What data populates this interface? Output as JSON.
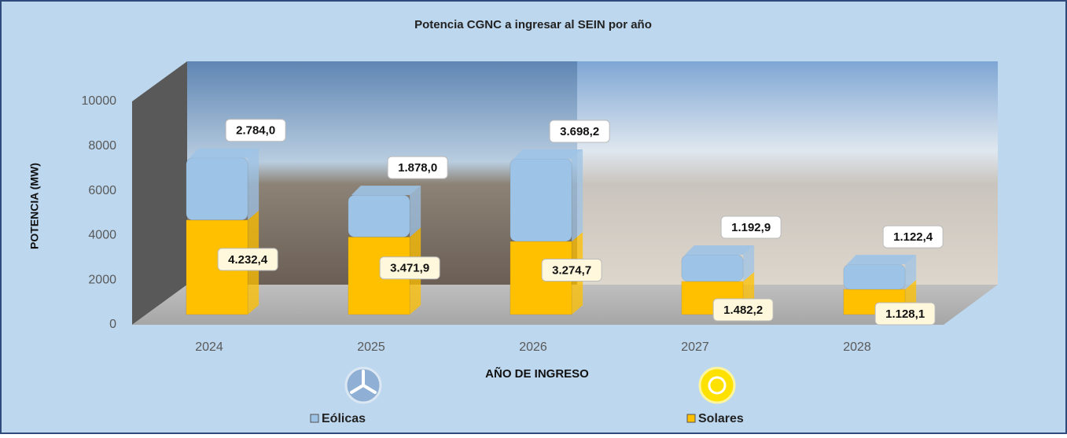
{
  "chart_data": {
    "type": "stacked-bar-3d",
    "title": "Potencia CGNC a ingresar al SEIN por año",
    "y_label": "POTENCIA (MW)",
    "x_label": "AÑO DE INGRESO",
    "categories": [
      "2024",
      "2025",
      "2026",
      "2027",
      "2028"
    ],
    "series": [
      {
        "name": "Eólicas",
        "color": "#9dc3e6",
        "values": [
          2784.0,
          1878.0,
          3698.2,
          1192.9,
          1122.4
        ],
        "value_labels": [
          "2.784,0",
          "1.878,0",
          "3.698,2",
          "1.192,9",
          "1.122,4"
        ]
      },
      {
        "name": "Solares",
        "color": "#ffc000",
        "values": [
          4232.4,
          3471.9,
          3274.7,
          1482.2,
          1128.1
        ],
        "value_labels": [
          "4.232,4",
          "3.471,9",
          "3.274,7",
          "1.482,2",
          "1.128,1"
        ]
      }
    ],
    "ylim": [
      0,
      10000
    ],
    "yticks": [
      0,
      2000,
      4000,
      6000,
      8000,
      10000
    ],
    "grid": false
  }
}
